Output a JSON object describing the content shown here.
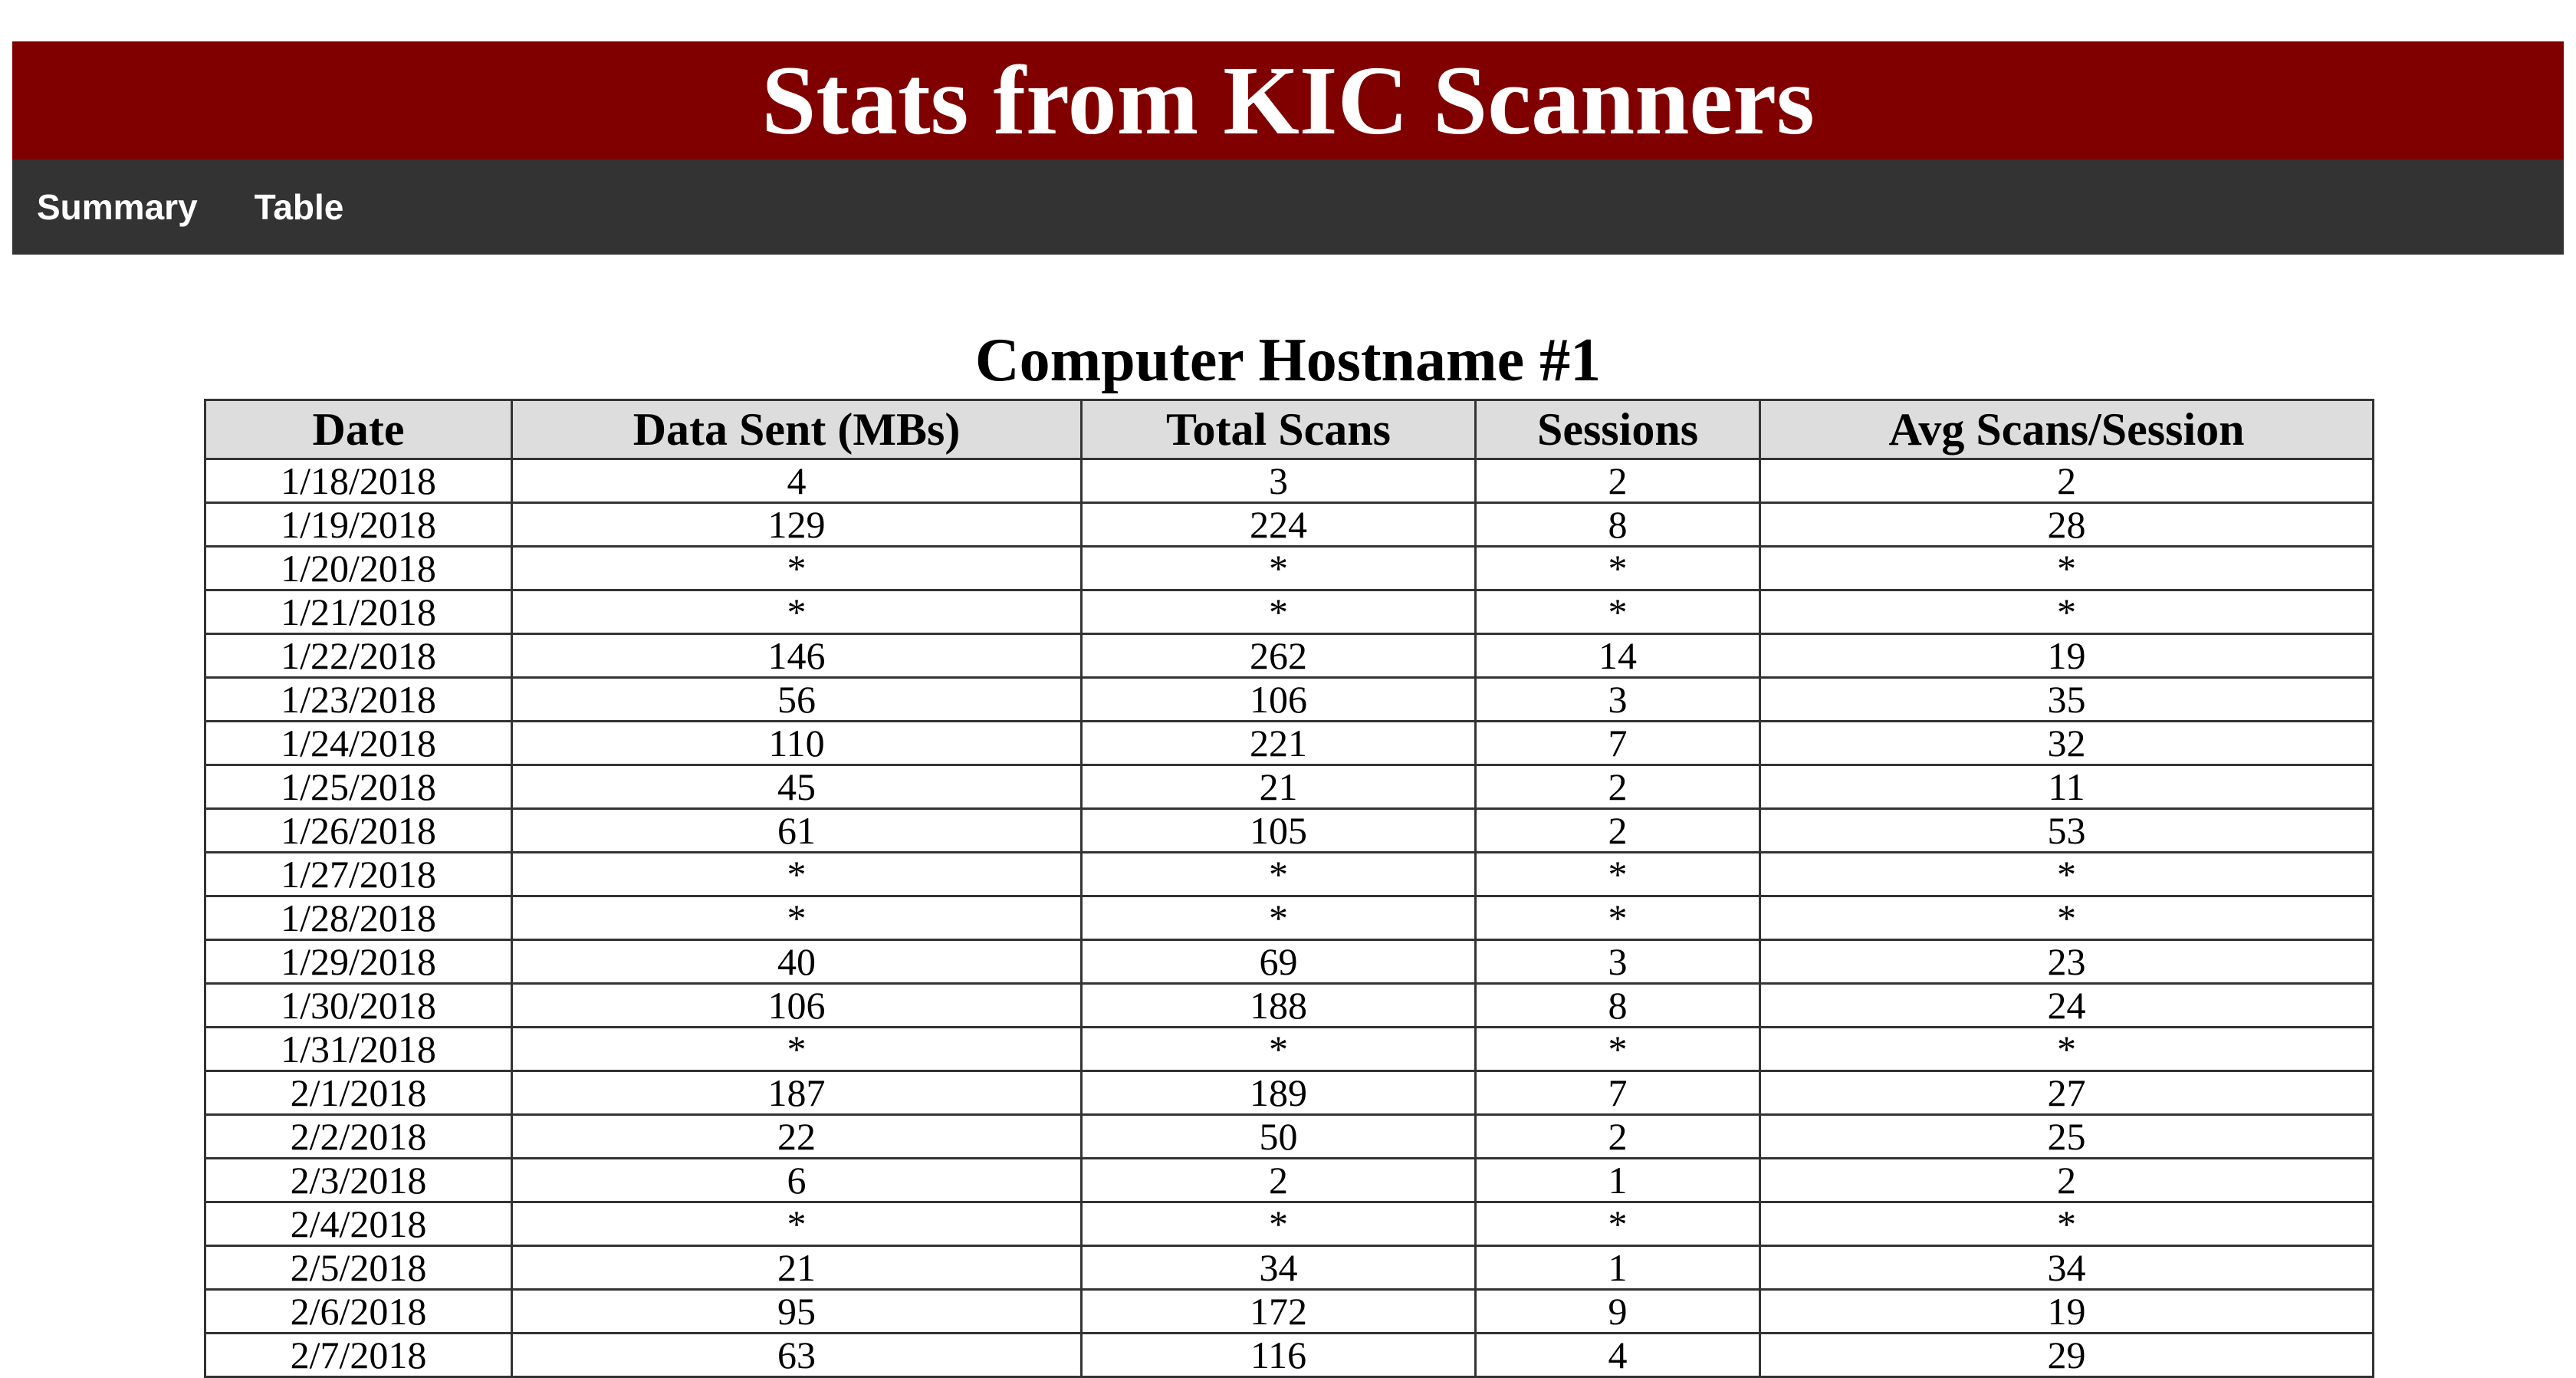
{
  "header": {
    "title": "Stats from KIC Scanners"
  },
  "nav": {
    "items": [
      {
        "label": "Summary"
      },
      {
        "label": "Table"
      }
    ]
  },
  "section": {
    "title": "Computer Hostname #1"
  },
  "table": {
    "columns": [
      "Date",
      "Data Sent (MBs)",
      "Total Scans",
      "Sessions",
      "Avg Scans/Session"
    ],
    "rows": [
      [
        "1/18/2018",
        "4",
        "3",
        "2",
        "2"
      ],
      [
        "1/19/2018",
        "129",
        "224",
        "8",
        "28"
      ],
      [
        "1/20/2018",
        "*",
        "*",
        "*",
        "*"
      ],
      [
        "1/21/2018",
        "*",
        "*",
        "*",
        "*"
      ],
      [
        "1/22/2018",
        "146",
        "262",
        "14",
        "19"
      ],
      [
        "1/23/2018",
        "56",
        "106",
        "3",
        "35"
      ],
      [
        "1/24/2018",
        "110",
        "221",
        "7",
        "32"
      ],
      [
        "1/25/2018",
        "45",
        "21",
        "2",
        "11"
      ],
      [
        "1/26/2018",
        "61",
        "105",
        "2",
        "53"
      ],
      [
        "1/27/2018",
        "*",
        "*",
        "*",
        "*"
      ],
      [
        "1/28/2018",
        "*",
        "*",
        "*",
        "*"
      ],
      [
        "1/29/2018",
        "40",
        "69",
        "3",
        "23"
      ],
      [
        "1/30/2018",
        "106",
        "188",
        "8",
        "24"
      ],
      [
        "1/31/2018",
        "*",
        "*",
        "*",
        "*"
      ],
      [
        "2/1/2018",
        "187",
        "189",
        "7",
        "27"
      ],
      [
        "2/2/2018",
        "22",
        "50",
        "2",
        "25"
      ],
      [
        "2/3/2018",
        "6",
        "2",
        "1",
        "2"
      ],
      [
        "2/4/2018",
        "*",
        "*",
        "*",
        "*"
      ],
      [
        "2/5/2018",
        "21",
        "34",
        "1",
        "34"
      ],
      [
        "2/6/2018",
        "95",
        "172",
        "9",
        "19"
      ],
      [
        "2/7/2018",
        "63",
        "116",
        "4",
        "29"
      ]
    ]
  },
  "colors": {
    "header_bg": "#800000",
    "nav_bg": "#333333",
    "table_header_bg": "#dddddd"
  }
}
